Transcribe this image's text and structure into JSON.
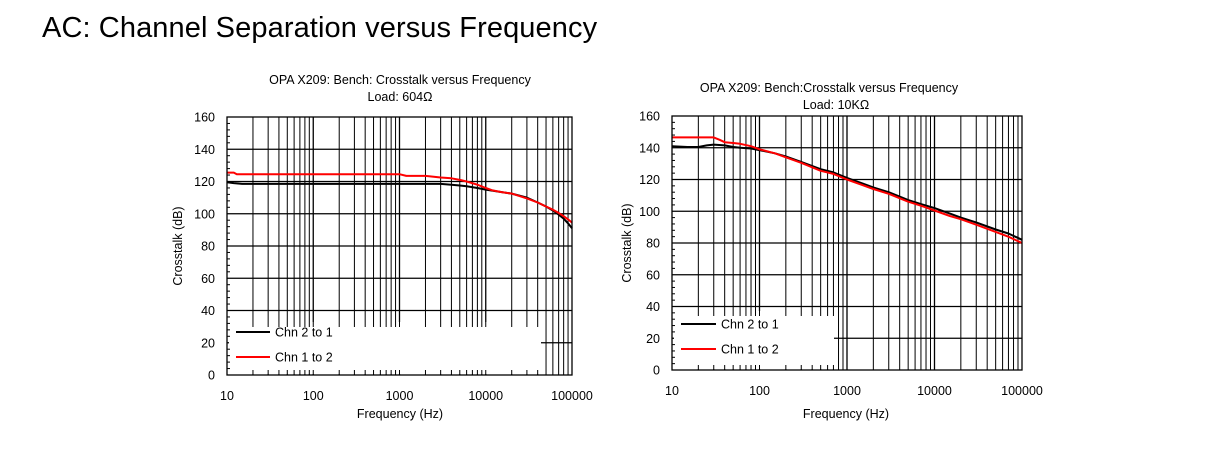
{
  "page": {
    "title": "AC: Channel Separation versus Frequency"
  },
  "colors": {
    "series_black": "#000000",
    "series_red": "#ff0000",
    "grid": "#000000"
  },
  "chart_data": [
    {
      "type": "line",
      "title": "OPA X209: Bench: Crosstalk versus Frequency",
      "subtitle": "Load: 604Ω",
      "xlabel": "Frequency (Hz)",
      "ylabel": "Crosstalk (dB)",
      "xscale": "log",
      "xlim": [
        10,
        100000
      ],
      "ylim": [
        0,
        160
      ],
      "xticks": [
        10,
        100,
        1000,
        10000,
        100000
      ],
      "xtick_labels": [
        "10",
        "100",
        "1000",
        "10000",
        "100000"
      ],
      "yticks": [
        0,
        20,
        40,
        60,
        80,
        100,
        120,
        140,
        160
      ],
      "ytick_labels": [
        "0",
        "20",
        "40",
        "60",
        "80",
        "100",
        "120",
        "140",
        "160"
      ],
      "grid": true,
      "legend_position": "bottom-left",
      "series": [
        {
          "name": "Chn 2 to 1",
          "color": "#000000",
          "x": [
            10,
            12,
            15,
            20,
            50,
            100,
            500,
            1000,
            2000,
            3000,
            4000,
            5000,
            6000,
            8000,
            10000,
            15000,
            20000,
            30000,
            40000,
            50000,
            60000,
            70000,
            80000,
            90000,
            100000
          ],
          "y": [
            119.5,
            119,
            118.5,
            118.5,
            118.5,
            118.5,
            118.5,
            118.5,
            118.5,
            118.5,
            118,
            117.5,
            117,
            116,
            115,
            113.5,
            112.5,
            110,
            107,
            104.5,
            102,
            99.5,
            97,
            94,
            91
          ]
        },
        {
          "name": "Chn 1 to 2",
          "color": "#ff0000",
          "x": [
            10,
            12,
            13,
            20,
            50,
            100,
            500,
            1000,
            1200,
            2000,
            3000,
            4000,
            5000,
            6000,
            8000,
            10000,
            12000,
            15000,
            20000,
            30000,
            40000,
            50000,
            60000,
            70000,
            80000,
            90000,
            100000
          ],
          "y": [
            125.5,
            125.5,
            124.5,
            124.5,
            124.5,
            124.5,
            124.5,
            124.5,
            123.5,
            123.5,
            122.5,
            122,
            121,
            120,
            118,
            116,
            114.5,
            113.5,
            112.5,
            109.5,
            107,
            104.5,
            102.5,
            100.5,
            98.5,
            96.5,
            94.5
          ]
        }
      ]
    },
    {
      "type": "line",
      "title": "OPA X209: Bench:Crosstalk versus Frequency",
      "subtitle": "Load: 10KΩ",
      "xlabel": "Frequency (Hz)",
      "ylabel": "Crosstalk (dB)",
      "xscale": "log",
      "xlim": [
        10,
        100000
      ],
      "ylim": [
        0,
        160
      ],
      "xticks": [
        10,
        100,
        1000,
        10000,
        100000
      ],
      "xtick_labels": [
        "10",
        "100",
        "1000",
        "10000",
        "100000"
      ],
      "yticks": [
        0,
        20,
        40,
        60,
        80,
        100,
        120,
        140,
        160
      ],
      "ytick_labels": [
        "0",
        "20",
        "40",
        "60",
        "80",
        "100",
        "120",
        "140",
        "160"
      ],
      "grid": true,
      "legend_position": "bottom-left",
      "series": [
        {
          "name": "Chn 2 to 1",
          "color": "#000000",
          "x": [
            10,
            15,
            20,
            25,
            30,
            40,
            50,
            60,
            80,
            100,
            150,
            200,
            300,
            500,
            700,
            1000,
            1500,
            2000,
            3000,
            5000,
            7000,
            10000,
            15000,
            20000,
            30000,
            50000,
            70000,
            100000
          ],
          "y": [
            141,
            140.5,
            140.5,
            141.5,
            142,
            141.5,
            140.5,
            140,
            139.5,
            138.5,
            136.5,
            134.5,
            131,
            126.5,
            124.5,
            121,
            117.5,
            115,
            112,
            107,
            104.5,
            102,
            98.5,
            96,
            93,
            88.5,
            86,
            82
          ]
        },
        {
          "name": "Chn 1 to 2",
          "color": "#ff0000",
          "x": [
            10,
            20,
            30,
            35,
            40,
            50,
            60,
            80,
            100,
            150,
            200,
            300,
            500,
            700,
            1000,
            1500,
            2000,
            3000,
            5000,
            7000,
            10000,
            15000,
            20000,
            30000,
            50000,
            70000,
            100000
          ],
          "y": [
            146.5,
            146.5,
            146.5,
            145,
            143.5,
            143,
            142.5,
            141,
            139,
            136.5,
            134,
            130.5,
            125.5,
            123.5,
            120,
            116.5,
            114,
            111,
            106,
            103.5,
            100.5,
            97,
            95,
            91.5,
            87,
            84,
            80
          ]
        }
      ]
    }
  ]
}
